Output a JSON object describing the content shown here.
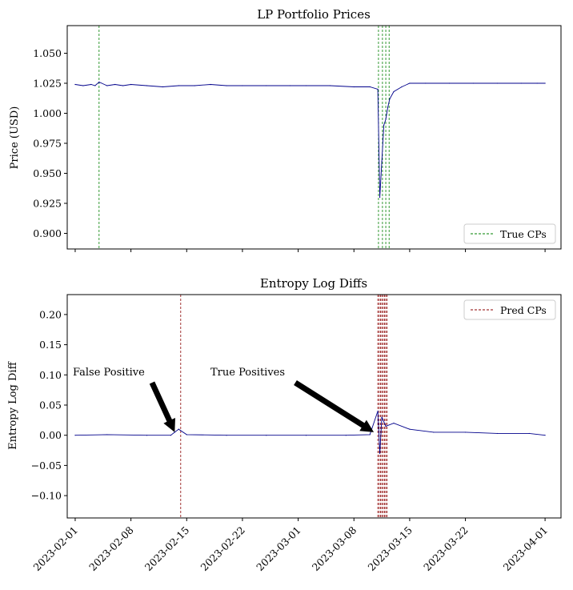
{
  "chart_data": [
    {
      "type": "line",
      "title": "LP Portfolio Prices",
      "xlabel": "",
      "ylabel": "Price (USD)",
      "x_ticks": [
        "2023-02-01",
        "2023-02-08",
        "2023-02-15",
        "2023-02-22",
        "2023-03-01",
        "2023-03-08",
        "2023-03-15",
        "2023-03-22",
        "2023-04-01"
      ],
      "y_ticks": [
        "0.900",
        "0.925",
        "0.950",
        "0.975",
        "1.000",
        "1.025",
        "1.050"
      ],
      "xlim": [
        "2023-01-31T00:00",
        "2023-04-03T00:00"
      ],
      "ylim": [
        0.887,
        1.073
      ],
      "grid": false,
      "legend_position": "lower right",
      "series": [
        {
          "name": "",
          "color": "#00008b",
          "x": [
            "2023-02-01",
            "2023-02-02",
            "2023-02-03",
            "2023-02-03T12:00",
            "2023-02-04",
            "2023-02-05",
            "2023-02-06",
            "2023-02-07",
            "2023-02-08",
            "2023-02-10",
            "2023-02-12",
            "2023-02-14",
            "2023-02-16",
            "2023-02-18",
            "2023-02-20",
            "2023-02-22",
            "2023-02-25",
            "2023-02-28",
            "2023-03-02",
            "2023-03-05",
            "2023-03-08",
            "2023-03-10",
            "2023-03-11",
            "2023-03-11T06:00",
            "2023-03-11T12:00",
            "2023-03-11T18:00",
            "2023-03-12",
            "2023-03-12T06:00",
            "2023-03-12T12:00",
            "2023-03-13",
            "2023-03-14",
            "2023-03-15",
            "2023-03-17",
            "2023-03-20",
            "2023-03-23",
            "2023-03-26",
            "2023-03-29",
            "2023-03-31",
            "2023-04-01"
          ],
          "y": [
            1.024,
            1.023,
            1.024,
            1.023,
            1.026,
            1.023,
            1.024,
            1.023,
            1.024,
            1.023,
            1.022,
            1.023,
            1.023,
            1.024,
            1.023,
            1.023,
            1.023,
            1.023,
            1.023,
            1.023,
            1.022,
            1.022,
            1.02,
            0.93,
            0.96,
            0.99,
            0.995,
            1.005,
            1.012,
            1.018,
            1.022,
            1.025,
            1.025,
            1.025,
            1.025,
            1.025,
            1.025,
            1.025,
            1.025
          ]
        }
      ],
      "vlines": {
        "name": "True CPs",
        "color": "#008000",
        "x": [
          "2023-02-04",
          "2023-03-11T02:00",
          "2023-03-11T14:00",
          "2023-03-12",
          "2023-03-12T10:00"
        ]
      }
    },
    {
      "type": "line",
      "title": "Entropy Log Diffs",
      "xlabel": "",
      "ylabel": "Entropy Log Diff",
      "x_ticks": [
        "2023-02-01",
        "2023-02-08",
        "2023-02-15",
        "2023-02-22",
        "2023-03-01",
        "2023-03-08",
        "2023-03-15",
        "2023-03-22",
        "2023-04-01"
      ],
      "y_ticks": [
        "−0.10",
        "−0.05",
        "0.00",
        "0.05",
        "0.10",
        "0.15",
        "0.20"
      ],
      "xlim": [
        "2023-01-31T00:00",
        "2023-04-03T00:00"
      ],
      "ylim": [
        -0.137,
        0.233
      ],
      "grid": false,
      "legend_position": "upper right",
      "series": [
        {
          "name": "",
          "color": "#00008b",
          "x": [
            "2023-02-01",
            "2023-02-05",
            "2023-02-10",
            "2023-02-13",
            "2023-02-13T12:00",
            "2023-02-14",
            "2023-02-15",
            "2023-02-20",
            "2023-02-25",
            "2023-03-02",
            "2023-03-07",
            "2023-03-10",
            "2023-03-11",
            "2023-03-11T06:00",
            "2023-03-11T12:00",
            "2023-03-12",
            "2023-03-13",
            "2023-03-15",
            "2023-03-18",
            "2023-03-22",
            "2023-03-26",
            "2023-03-30",
            "2023-04-01"
          ],
          "y": [
            0.0,
            0.001,
            0.0,
            0.0,
            0.005,
            0.01,
            0.001,
            0.0,
            0.0,
            0.0,
            0.0,
            0.001,
            0.04,
            -0.03,
            0.03,
            0.015,
            0.02,
            0.01,
            0.005,
            0.005,
            0.003,
            0.003,
            0.0
          ]
        }
      ],
      "vlines": {
        "name": "Pred CPs",
        "color": "#8b0000",
        "x": [
          "2023-02-14T06:00",
          "2023-03-11",
          "2023-03-11T04:00",
          "2023-03-11T08:00",
          "2023-03-11T12:00",
          "2023-03-11T16:00",
          "2023-03-11T20:00",
          "2023-03-12",
          "2023-03-12T04:00"
        ]
      },
      "annotations": [
        {
          "text": "False Positive",
          "target": [
            "2023-02-13T12:00",
            0.005
          ]
        },
        {
          "text": "True Positives",
          "target": [
            "2023-03-10T12:00",
            0.005
          ]
        }
      ]
    }
  ]
}
